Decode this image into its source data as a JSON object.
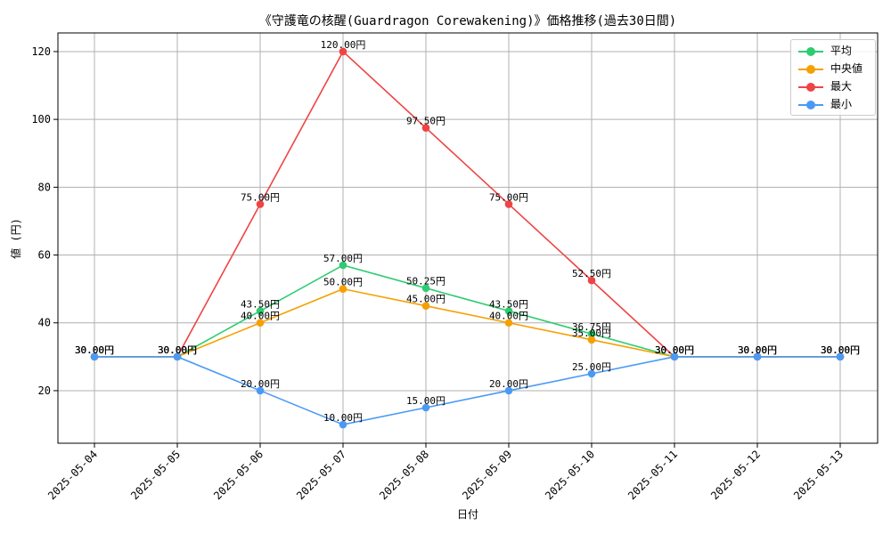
{
  "chart_data": {
    "type": "line",
    "title": "《守護竜の核醒(Guardragon Corewakening)》価格推移(過去30日間)",
    "xlabel": "日付",
    "ylabel": "値 (円)",
    "categories": [
      "2025-05-04",
      "2025-05-05",
      "2025-05-06",
      "2025-05-07",
      "2025-05-08",
      "2025-05-09",
      "2025-05-10",
      "2025-05-11",
      "2025-05-12",
      "2025-05-13"
    ],
    "ylim": [
      4.5,
      125.5
    ],
    "yticks": [
      20,
      40,
      60,
      80,
      100,
      120
    ],
    "grid": true,
    "legend_position": "top-right",
    "value_suffix": "円",
    "series": [
      {
        "name": "平均",
        "color": "#2ecc71",
        "values": [
          30,
          30,
          43.5,
          57,
          50.25,
          43.5,
          36.75,
          30,
          30,
          30
        ],
        "labels": [
          "30.00円",
          "30.00円",
          "43.50円",
          "57.00円",
          "50.25円",
          "43.50円",
          "36.75円",
          "30.00円",
          "30.00円",
          "30.00円"
        ]
      },
      {
        "name": "中央値",
        "color": "#f5a000",
        "values": [
          30,
          30,
          40,
          50,
          45,
          40,
          35,
          30,
          30,
          30
        ],
        "labels": [
          "30.00円",
          "30.00円",
          "40.00円",
          "50.00円",
          "45.00円",
          "40.00円",
          "35.00円",
          "30.00円",
          "30.00円",
          "30.00円"
        ]
      },
      {
        "name": "最大",
        "color": "#ef4444",
        "values": [
          30,
          30,
          75,
          120,
          97.5,
          75,
          52.5,
          30,
          30,
          30
        ],
        "labels": [
          "30.00円",
          "30.00円",
          "75.00円",
          "120.00円",
          "97.50円",
          "75.00円",
          "52.50円",
          "30.00円",
          "30.00円",
          "30.00円"
        ]
      },
      {
        "name": "最小",
        "color": "#4a9af5",
        "values": [
          30,
          30,
          20,
          10,
          15,
          20,
          25,
          30,
          30,
          30
        ],
        "labels": [
          "30.00円",
          "30.00円",
          "20.00円",
          "10.00円",
          "15.00円",
          "20.00円",
          "25.00円",
          "30.00円",
          "30.00円",
          "30.00円"
        ]
      }
    ]
  }
}
